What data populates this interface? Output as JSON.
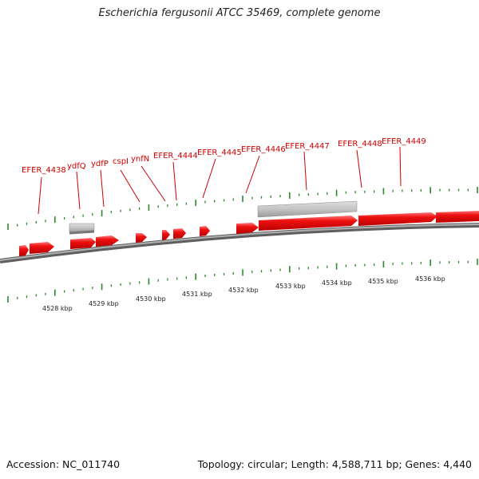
{
  "title": "Escherichia fergusonii ATCC 35469, complete genome",
  "footer": {
    "accession": "Accession: NC_011740",
    "summary": "Topology: circular; Length: 4,588,711 bp; Genes: 4,440"
  },
  "colors": {
    "gene": "#ee1111",
    "gene_highlight": "#ff7777",
    "gene_dark": "#b80000",
    "pseudo": "#b8b8b8",
    "label": "#cc0000",
    "tick": "#2a8a2a",
    "backbone": "#8a8a8a"
  },
  "scale_labels": [
    "4528 kbp",
    "4529 kbp",
    "4530 kbp",
    "4531 kbp",
    "4532 kbp",
    "4533 kbp",
    "4534 kbp",
    "4535 kbp",
    "4536 kbp"
  ],
  "gene_labels": [
    "EFER_4438",
    "ydfQ",
    "ydfP",
    "cspI",
    "ynfN",
    "EFER_4444",
    "EFER_4445",
    "EFER_4446",
    "EFER_4447",
    "EFER_4448",
    "EFER_4449"
  ]
}
